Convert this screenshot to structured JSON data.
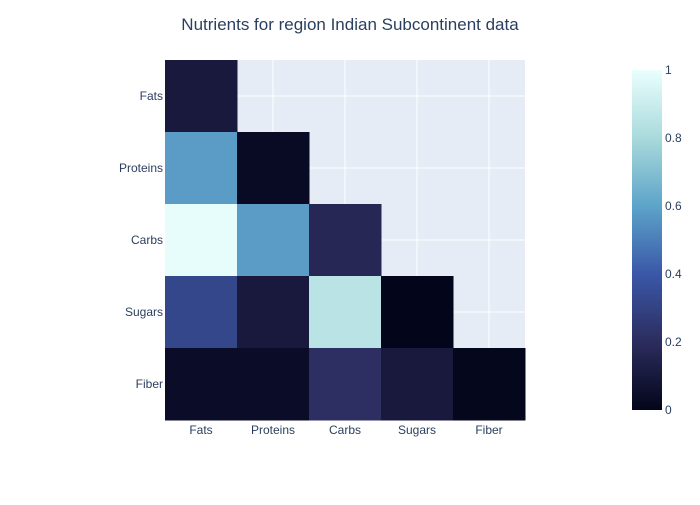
{
  "chart_data": {
    "type": "heatmap",
    "title": "Nutrients for region Indian Subcontinent data",
    "x_categories": [
      "Fats",
      "Proteins",
      "Carbs",
      "Sugars",
      "Fiber"
    ],
    "y_categories": [
      "Fats",
      "Proteins",
      "Carbs",
      "Sugars",
      "Fiber"
    ],
    "values": [
      [
        0.1,
        null,
        null,
        null,
        null
      ],
      [
        0.58,
        0.03,
        null,
        null,
        null
      ],
      [
        0.99,
        0.58,
        0.17,
        null,
        null
      ],
      [
        0.32,
        0.1,
        0.85,
        0.0,
        null
      ],
      [
        0.04,
        0.04,
        0.21,
        0.1,
        0.01
      ]
    ],
    "colorbar": {
      "min": 0,
      "max": 1,
      "ticks": [
        "0",
        "0.2",
        "0.4",
        "0.6",
        "0.8",
        "1"
      ],
      "colorscale": [
        "#03051a",
        "#2c2d5e",
        "#3a58a8",
        "#5da4c9",
        "#a9dadb",
        "#eafffe"
      ]
    },
    "grid": true,
    "plot_bgcolor": "#e5ecf6"
  }
}
